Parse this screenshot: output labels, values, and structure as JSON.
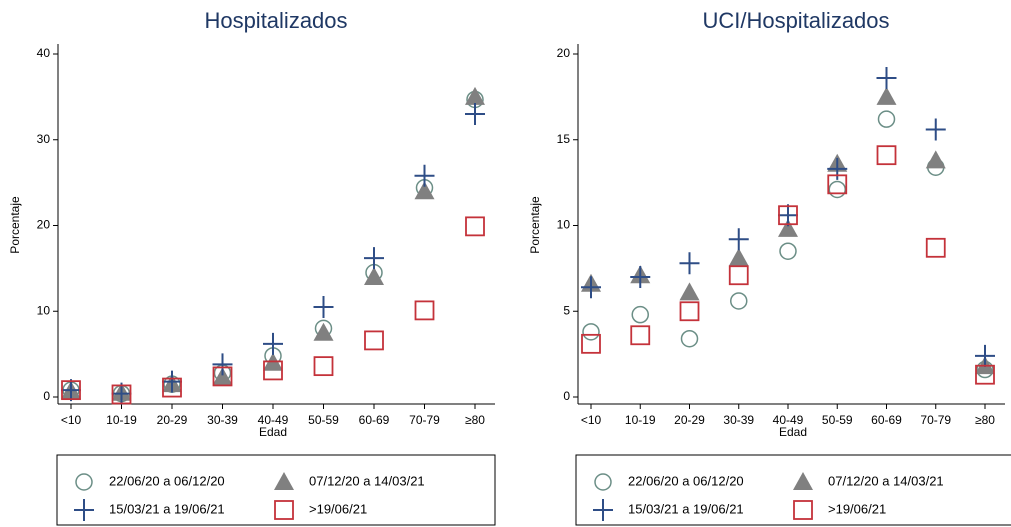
{
  "chart_data": [
    {
      "type": "scatter",
      "title": "Hospitalizados",
      "x_label": "Edad",
      "y_label": "Porcentaje",
      "categories": [
        "<10",
        "10-19",
        "20-29",
        "30-39",
        "40-49",
        "50-59",
        "60-69",
        "70-79",
        "≥80"
      ],
      "ylim": [
        0,
        40
      ],
      "yticks": [
        0,
        10,
        20,
        30,
        40
      ],
      "series": [
        {
          "name": "22/06/20 a 06/12/20",
          "marker": "circle",
          "color": "#6b8e86",
          "values": [
            0.8,
            0.4,
            1.5,
            2.8,
            4.8,
            8.0,
            14.5,
            24.4,
            34.7
          ]
        },
        {
          "name": "07/12/20 a 14/03/21",
          "marker": "triangle",
          "color": "#808080",
          "values": [
            0.7,
            0.5,
            1.5,
            2.3,
            4.0,
            7.5,
            14.0,
            24.0,
            35.0
          ]
        },
        {
          "name": "15/03/21 a 19/06/21",
          "marker": "plus",
          "color": "#2e4d86",
          "values": [
            0.8,
            0.4,
            1.8,
            3.8,
            6.2,
            10.5,
            16.2,
            25.8,
            33.0
          ]
        },
        {
          "name": ">19/06/21",
          "marker": "square",
          "color": "#c4323a",
          "values": [
            0.8,
            0.3,
            1.1,
            2.4,
            3.1,
            3.6,
            6.6,
            10.1,
            19.9
          ]
        }
      ]
    },
    {
      "type": "scatter",
      "title": "UCI/Hospitalizados",
      "x_label": "Edad",
      "y_label": "Porcentaje",
      "categories": [
        "<10",
        "10-19",
        "20-29",
        "30-39",
        "40-49",
        "50-59",
        "60-69",
        "70-79",
        "≥80"
      ],
      "ylim": [
        0,
        20
      ],
      "yticks": [
        0,
        5,
        10,
        15,
        20
      ],
      "series": [
        {
          "name": "22/06/20 a 06/12/20",
          "marker": "circle",
          "color": "#6b8e86",
          "values": [
            3.8,
            4.8,
            3.4,
            5.6,
            8.5,
            12.1,
            16.2,
            13.4,
            1.6
          ]
        },
        {
          "name": "07/12/20 a 14/03/21",
          "marker": "triangle",
          "color": "#808080",
          "values": [
            6.6,
            7.1,
            6.1,
            8.1,
            9.8,
            13.6,
            17.5,
            13.8,
            1.8
          ]
        },
        {
          "name": "15/03/21 a 19/06/21",
          "marker": "plus",
          "color": "#2e4d86",
          "values": [
            6.4,
            7.0,
            7.8,
            9.2,
            10.6,
            13.3,
            18.6,
            15.6,
            2.4
          ]
        },
        {
          "name": ">19/06/21",
          "marker": "square",
          "color": "#c4323a",
          "values": [
            3.1,
            3.6,
            5.0,
            7.1,
            10.6,
            12.4,
            14.1,
            8.7,
            1.3
          ]
        }
      ]
    }
  ]
}
